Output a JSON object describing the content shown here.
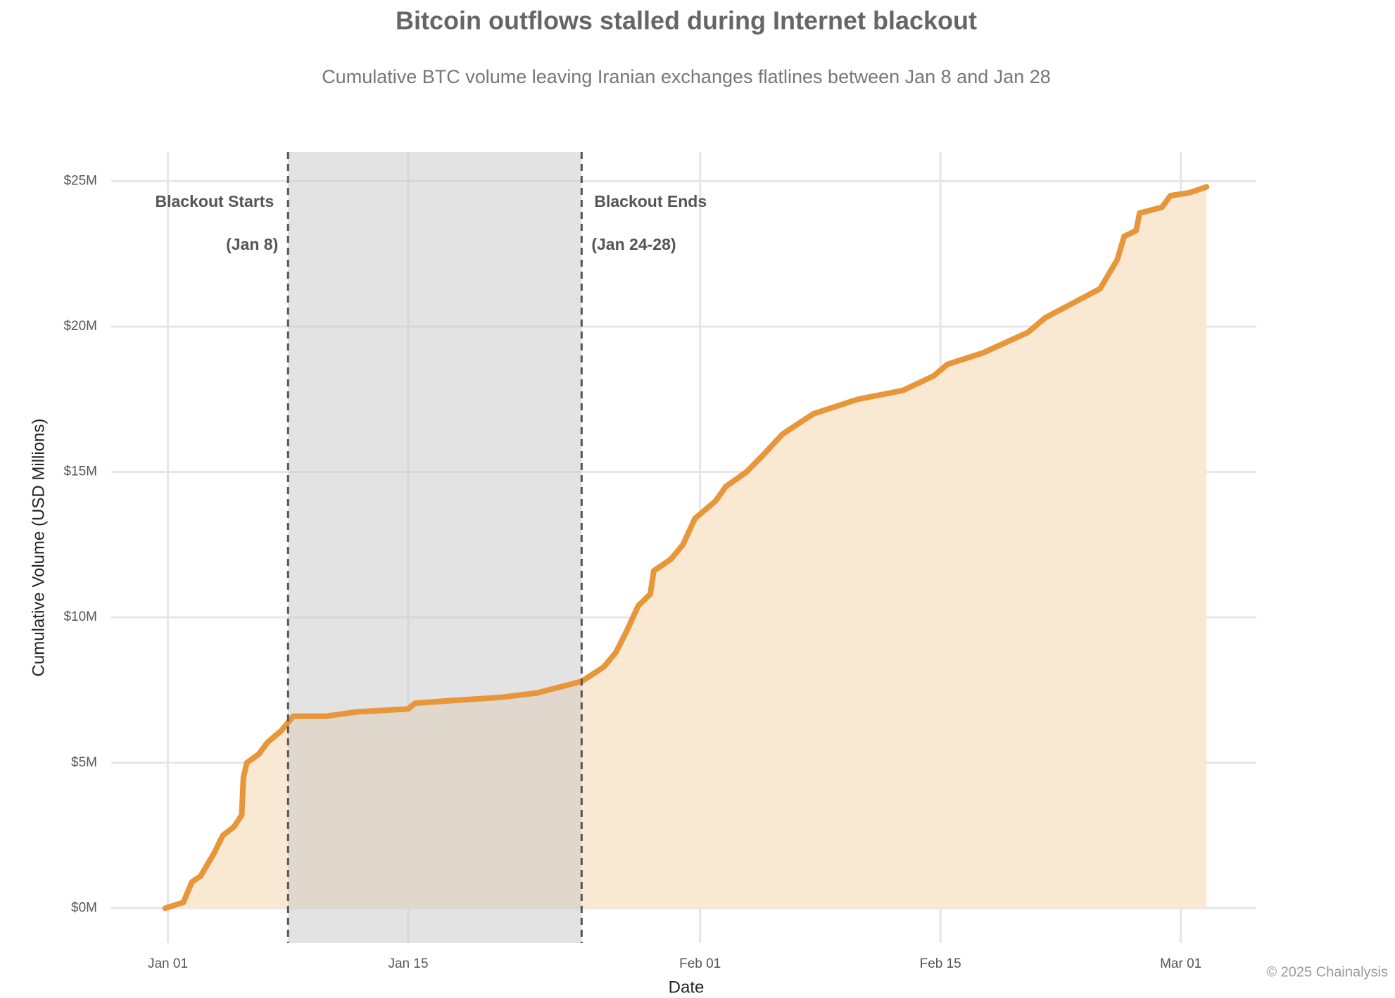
{
  "chart_data": {
    "type": "area",
    "title": "Bitcoin outflows stalled during Internet blackout",
    "subtitle": "Cumulative BTC volume leaving Iranian exchanges flatlines between Jan 8 and Jan 28",
    "x_label": "Date",
    "y_label": "Cumulative Volume (USD Millions)",
    "credit": "© 2025 Chainalysis",
    "color": "#e8963a",
    "fill_color": "#f9e8d2",
    "grid": true,
    "x": [
      0.84,
      1.9,
      2.4,
      2.9,
      3.7,
      4.2,
      4.85,
      5.3,
      5.4,
      5.6,
      6.3,
      6.8,
      7.6,
      8.3,
      10.2,
      12.0,
      15.0,
      15.4,
      17.8,
      20.4,
      22.5,
      25.1,
      26.4,
      27.1,
      27.7,
      28.4,
      29.1,
      29.3,
      30.3,
      31.0,
      31.7,
      32.9,
      33.5,
      34.7,
      35.7,
      36.8,
      38.6,
      41.2,
      43.8,
      45.6,
      46.4,
      48.5,
      51.1,
      52.1,
      55.3,
      56.3,
      56.7,
      57.4,
      57.6,
      58.9,
      59.4,
      60.5,
      61.5
    ],
    "values": [
      0,
      0.2,
      0.9,
      1.1,
      1.9,
      2.5,
      2.8,
      3.2,
      4.5,
      5.0,
      5.3,
      5.7,
      6.1,
      6.6,
      6.6,
      6.75,
      6.85,
      7.05,
      7.15,
      7.25,
      7.4,
      7.8,
      8.3,
      8.8,
      9.5,
      10.4,
      10.8,
      11.6,
      12.0,
      12.5,
      13.4,
      14.0,
      14.5,
      15.0,
      15.6,
      16.3,
      17.0,
      17.5,
      17.8,
      18.3,
      18.7,
      19.1,
      19.8,
      20.3,
      21.3,
      22.3,
      23.1,
      23.3,
      23.9,
      24.1,
      24.5,
      24.6,
      24.8
    ],
    "shade": [
      8,
      25.1
    ],
    "annotations": [
      [
        "Blackout Starts",
        "(Jan 8)"
      ],
      [
        "Blackout Ends",
        "(Jan 24-28)"
      ]
    ],
    "xlim": [
      -2.3,
      64.4
    ],
    "xticks": [
      {
        "value": 1,
        "label": "Jan 01"
      },
      {
        "value": 15,
        "label": "Jan 15"
      },
      {
        "value": 32,
        "label": "Feb 01"
      },
      {
        "value": 46,
        "label": "Feb 15"
      },
      {
        "value": 60,
        "label": "Mar 01"
      }
    ],
    "ylim": [
      -1.2,
      26
    ],
    "yticks": [
      {
        "value": 0,
        "label": "$0M"
      },
      {
        "value": 5,
        "label": "$5M"
      },
      {
        "value": 10,
        "label": "$10M"
      },
      {
        "value": 15,
        "label": "$15M"
      },
      {
        "value": 20,
        "label": "$20M"
      },
      {
        "value": 25,
        "label": "$25M"
      }
    ]
  }
}
